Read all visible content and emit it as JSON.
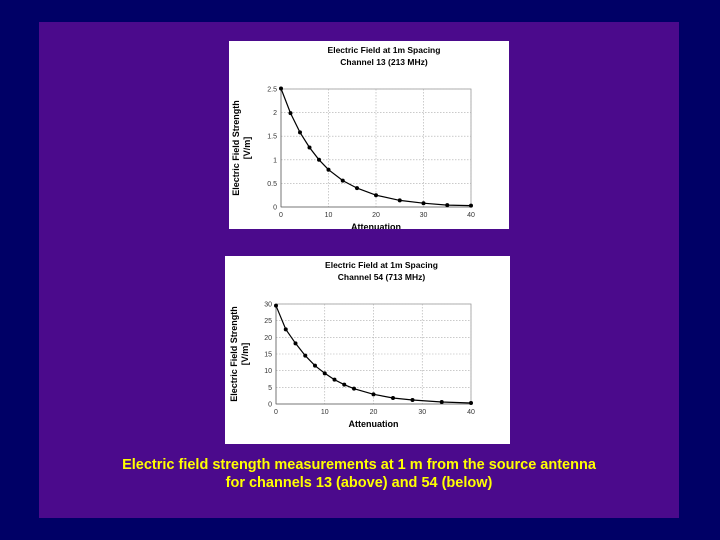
{
  "chart_data": [
    {
      "type": "line",
      "title": "Electric Field at 1m Spacing",
      "subtitle": "Channel 13 (213 MHz)",
      "xlabel": "Attenuation",
      "ylabel": "Electric Field Strength [V/m]",
      "xlim": [
        0,
        40
      ],
      "ylim": [
        0,
        2.5
      ],
      "xticks": [
        0,
        10,
        20,
        30,
        40
      ],
      "yticks": [
        0,
        0.5,
        1,
        1.5,
        2,
        2.5
      ],
      "xticklabels": [
        "0",
        "10",
        "20",
        "30",
        "40"
      ],
      "yticklabels": [
        "0",
        "0.5",
        "1",
        "1.5",
        "2",
        "2.5"
      ],
      "grid": true,
      "series": [
        {
          "x": [
            0,
            2,
            4,
            6,
            8,
            10,
            13,
            16,
            20,
            25,
            30,
            35,
            40
          ],
          "y": [
            2.51,
            1.99,
            1.58,
            1.26,
            1.0,
            0.79,
            0.56,
            0.4,
            0.25,
            0.14,
            0.08,
            0.04,
            0.03
          ]
        }
      ]
    },
    {
      "type": "line",
      "title": "Electric Field at 1m Spacing",
      "subtitle": "Channel 54 (713 MHz)",
      "xlabel": "Attenuation",
      "ylabel": "Electric Field Strength [V/m]",
      "xlim": [
        0,
        40
      ],
      "ylim": [
        0,
        30
      ],
      "xticks": [
        0,
        10,
        20,
        30,
        40
      ],
      "yticks": [
        0,
        5,
        10,
        15,
        20,
        25,
        30
      ],
      "xticklabels": [
        "0",
        "10",
        "20",
        "30",
        "40"
      ],
      "yticklabels": [
        "0",
        "5",
        "10",
        "15",
        "20",
        "25",
        "30"
      ],
      "grid": true,
      "series": [
        {
          "x": [
            0,
            2,
            4,
            6,
            8,
            10,
            12,
            14,
            16,
            20,
            24,
            28,
            34,
            40
          ],
          "y": [
            29.5,
            22.4,
            18.2,
            14.5,
            11.5,
            9.2,
            7.3,
            5.8,
            4.6,
            2.9,
            1.8,
            1.2,
            0.6,
            0.3
          ]
        }
      ]
    }
  ],
  "caption": {
    "line1": "Electric field strength measurements at 1 m from the source antenna",
    "line2": "for channels 13 (above) and 54 (below)"
  },
  "colors": {
    "background": "#000066",
    "slide": "#4b0a8c",
    "caption": "#ffff00"
  }
}
